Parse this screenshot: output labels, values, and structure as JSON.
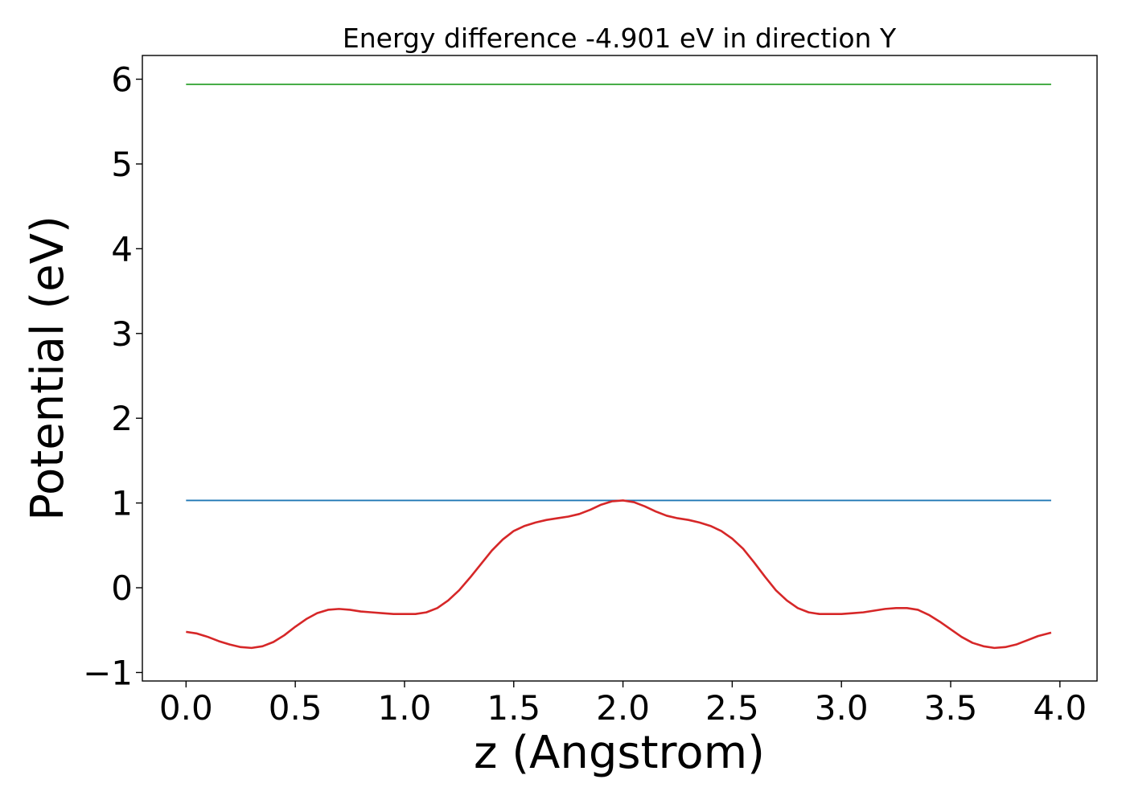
{
  "chart_data": {
    "type": "line",
    "title": "Energy difference -4.901 eV in direction Y",
    "xlabel": "z (Angstrom)",
    "ylabel": "Potential (eV)",
    "xlim": [
      -0.2,
      4.17
    ],
    "ylim": [
      -1.1,
      6.28
    ],
    "xticks": [
      0.0,
      0.5,
      1.0,
      1.5,
      2.0,
      2.5,
      3.0,
      3.5,
      4.0
    ],
    "xtick_labels": [
      "0.0",
      "0.5",
      "1.0",
      "1.5",
      "2.0",
      "2.5",
      "3.0",
      "3.5",
      "4.0"
    ],
    "yticks": [
      -1,
      0,
      1,
      2,
      3,
      4,
      5,
      6
    ],
    "ytick_labels": [
      "−1",
      "0",
      "1",
      "2",
      "3",
      "4",
      "5",
      "6"
    ],
    "grid": false,
    "series": [
      {
        "color": "#2ca02c",
        "x": [
          0.0,
          3.96
        ],
        "y": [
          5.94,
          5.94
        ]
      },
      {
        "color": "#1f77b4",
        "x": [
          0.0,
          3.96
        ],
        "y": [
          1.03,
          1.03
        ]
      },
      {
        "color": "#d62728",
        "x": [
          0.0,
          0.05,
          0.1,
          0.15,
          0.2,
          0.25,
          0.3,
          0.35,
          0.4,
          0.45,
          0.5,
          0.55,
          0.6,
          0.65,
          0.7,
          0.75,
          0.8,
          0.85,
          0.9,
          0.95,
          1.0,
          1.05,
          1.1,
          1.15,
          1.2,
          1.25,
          1.3,
          1.35,
          1.4,
          1.45,
          1.5,
          1.55,
          1.6,
          1.65,
          1.7,
          1.75,
          1.8,
          1.85,
          1.9,
          1.95,
          2.0,
          2.05,
          2.1,
          2.15,
          2.2,
          2.25,
          2.3,
          2.35,
          2.4,
          2.45,
          2.5,
          2.55,
          2.6,
          2.65,
          2.7,
          2.75,
          2.8,
          2.85,
          2.9,
          2.95,
          3.0,
          3.05,
          3.1,
          3.15,
          3.2,
          3.25,
          3.3,
          3.35,
          3.4,
          3.45,
          3.5,
          3.55,
          3.6,
          3.65,
          3.7,
          3.75,
          3.8,
          3.85,
          3.9,
          3.96
        ],
        "y": [
          -0.52,
          -0.54,
          -0.58,
          -0.63,
          -0.67,
          -0.7,
          -0.71,
          -0.69,
          -0.64,
          -0.56,
          -0.46,
          -0.37,
          -0.3,
          -0.26,
          -0.25,
          -0.26,
          -0.28,
          -0.29,
          -0.3,
          -0.31,
          -0.31,
          -0.31,
          -0.29,
          -0.24,
          -0.15,
          -0.03,
          0.12,
          0.28,
          0.44,
          0.57,
          0.67,
          0.73,
          0.77,
          0.8,
          0.82,
          0.84,
          0.87,
          0.92,
          0.98,
          1.02,
          1.03,
          1.01,
          0.96,
          0.9,
          0.85,
          0.82,
          0.8,
          0.77,
          0.73,
          0.67,
          0.58,
          0.46,
          0.3,
          0.13,
          -0.03,
          -0.15,
          -0.24,
          -0.29,
          -0.31,
          -0.31,
          -0.31,
          -0.3,
          -0.29,
          -0.27,
          -0.25,
          -0.24,
          -0.24,
          -0.26,
          -0.32,
          -0.4,
          -0.49,
          -0.58,
          -0.65,
          -0.69,
          -0.71,
          -0.7,
          -0.67,
          -0.62,
          -0.57,
          -0.53
        ]
      }
    ]
  }
}
